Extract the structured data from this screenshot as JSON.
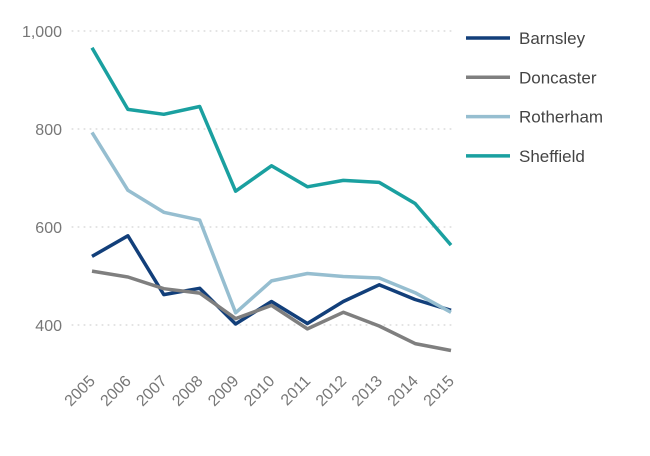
{
  "chart_data": {
    "type": "line",
    "title": "",
    "xlabel": "",
    "ylabel": "",
    "categories": [
      "2005",
      "2006",
      "2007",
      "2008",
      "2009",
      "2010",
      "2011",
      "2012",
      "2013",
      "2014",
      "2015"
    ],
    "ylim": [
      300,
      1000
    ],
    "yticks": [
      {
        "value": 400,
        "label": "400"
      },
      {
        "value": 600,
        "label": "600"
      },
      {
        "value": 800,
        "label": "800"
      },
      {
        "value": 1000,
        "label": "1,000"
      }
    ],
    "grid": true,
    "legend_position": "right",
    "series": [
      {
        "name": "Barnsley",
        "color": "#123f7a",
        "values": [
          540,
          582,
          462,
          475,
          402,
          448,
          403,
          448,
          482,
          452,
          430
        ]
      },
      {
        "name": "Doncaster",
        "color": "#7f7f7f",
        "values": [
          510,
          498,
          474,
          465,
          413,
          440,
          392,
          426,
          398,
          362,
          348
        ]
      },
      {
        "name": "Rotherham",
        "color": "#96bed0",
        "values": [
          793,
          675,
          630,
          614,
          425,
          490,
          505,
          499,
          496,
          466,
          426
        ]
      },
      {
        "name": "Sheffield",
        "color": "#1aa0a0",
        "values": [
          966,
          840,
          830,
          846,
          673,
          725,
          682,
          695,
          691,
          648,
          563
        ]
      }
    ]
  }
}
